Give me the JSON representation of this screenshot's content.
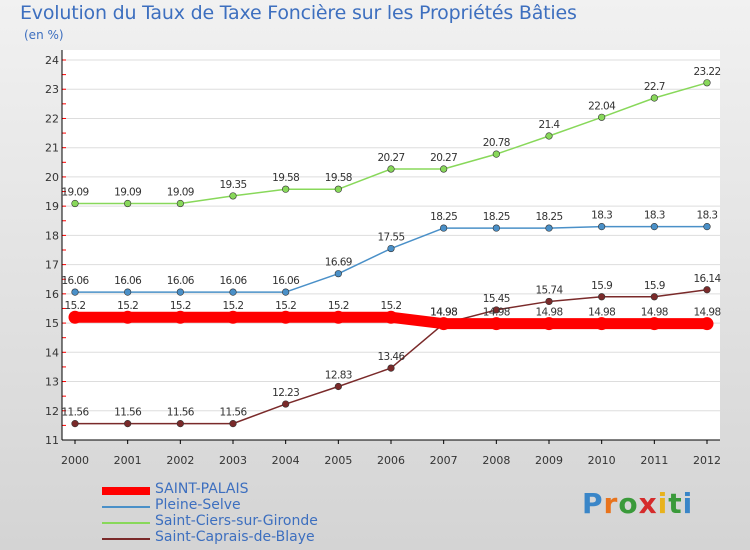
{
  "title": "Evolution du Taux de Taxe Foncière sur les Propriétés Bâties",
  "subtitle": "(en %)",
  "brand": {
    "text": "Proxiti",
    "letter_colors": [
      "#3a86c8",
      "#e8731c",
      "#3a9a3a",
      "#d52b2b",
      "#e8b21c",
      "#3a9a3a",
      "#3a86c8"
    ]
  },
  "chart_data": {
    "type": "line",
    "title": "Evolution du Taux de Taxe Foncière sur les Propriétés Bâties",
    "ylabel": "(en %)",
    "xlabel": "",
    "x": [
      "2000",
      "2001",
      "2002",
      "2003",
      "2004",
      "2005",
      "2006",
      "2007",
      "2008",
      "2009",
      "2010",
      "2011",
      "2012"
    ],
    "ylim": [
      11,
      24
    ],
    "yticks": [
      11,
      12,
      13,
      14,
      15,
      16,
      17,
      18,
      19,
      20,
      21,
      22,
      23,
      24
    ],
    "grid": true,
    "legend": "bottom-left",
    "series": [
      {
        "name": "SAINT-PALAIS",
        "values": [
          15.2,
          15.2,
          15.2,
          15.2,
          15.2,
          15.2,
          15.2,
          14.98,
          14.98,
          14.98,
          14.98,
          14.98,
          14.98
        ],
        "labels": [
          "15.2",
          "15.2",
          "15.2",
          "15.2",
          "15.2",
          "15.2",
          "15.2",
          "14.98",
          "14.98",
          "14.98",
          "14.98",
          "14.98",
          "14.98"
        ],
        "color": "#ff0000"
      },
      {
        "name": "Pleine-Selve",
        "values": [
          16.06,
          16.06,
          16.06,
          16.06,
          16.06,
          16.69,
          17.55,
          18.25,
          18.25,
          18.25,
          18.3,
          18.3,
          18.3
        ],
        "labels": [
          "16.06",
          "16.06",
          "16.06",
          "16.06",
          "16.06",
          "16.69",
          "17.55",
          "18.25",
          "18.25",
          "18.25",
          "18.3",
          "18.3",
          "18.3"
        ],
        "color": "#4a90c8"
      },
      {
        "name": "Saint-Ciers-sur-Gironde",
        "values": [
          19.09,
          19.09,
          19.09,
          19.35,
          19.58,
          19.58,
          20.27,
          20.27,
          20.78,
          21.4,
          22.04,
          22.7,
          23.22
        ],
        "labels": [
          "19.09",
          "19.09",
          "19.09",
          "19.35",
          "19.58",
          "19.58",
          "20.27",
          "20.27",
          "20.78",
          "21.4",
          "22.04",
          "22.7",
          "23.22"
        ],
        "color": "#88d85a"
      },
      {
        "name": "Saint-Caprais-de-Blaye",
        "values": [
          11.56,
          11.56,
          11.56,
          11.56,
          12.23,
          12.83,
          13.46,
          14.98,
          15.45,
          15.74,
          15.9,
          15.9,
          16.14
        ],
        "labels": [
          "11.56",
          "11.56",
          "11.56",
          "11.56",
          "12.23",
          "12.83",
          "13.46",
          "14.98",
          "15.45",
          "15.74",
          "15.9",
          "15.9",
          "16.14"
        ],
        "color": "#7a2a2a"
      }
    ]
  }
}
